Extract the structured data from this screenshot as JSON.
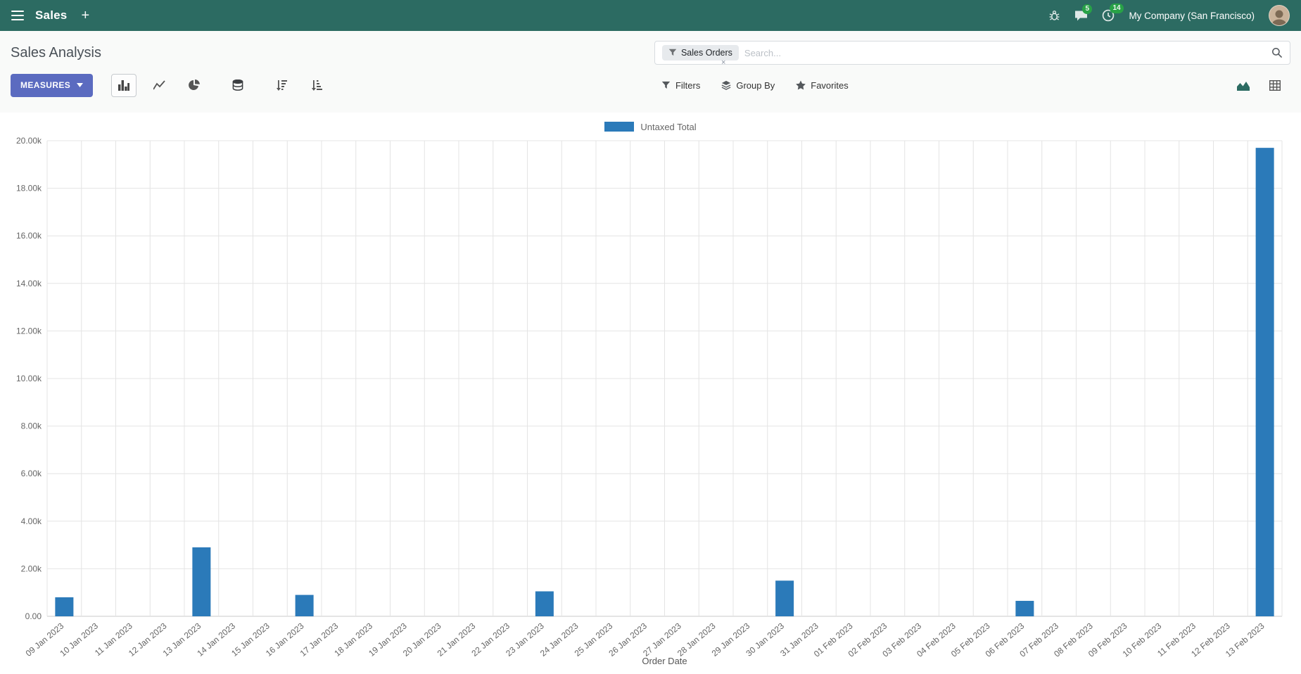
{
  "navbar": {
    "app_name": "Sales",
    "new_label": "+",
    "message_count": "5",
    "activity_count": "14",
    "company": "My Company (San Francisco)"
  },
  "control_panel": {
    "title": "Sales Analysis",
    "measures_button": "MEASURES",
    "filters": "Filters",
    "group_by": "Group By",
    "favorites": "Favorites",
    "search": {
      "facet_label": "Sales Orders",
      "facet_remove": "×",
      "placeholder": "Search..."
    }
  },
  "chart_data": {
    "type": "bar",
    "title": "",
    "xlabel": "Order Date",
    "ylabel": "",
    "ylim": [
      0,
      20000
    ],
    "ytick_step": 2000,
    "grid": true,
    "legend_position": "top",
    "categories": [
      "09 Jan 2023",
      "10 Jan 2023",
      "11 Jan 2023",
      "12 Jan 2023",
      "13 Jan 2023",
      "14 Jan 2023",
      "15 Jan 2023",
      "16 Jan 2023",
      "17 Jan 2023",
      "18 Jan 2023",
      "19 Jan 2023",
      "20 Jan 2023",
      "21 Jan 2023",
      "22 Jan 2023",
      "23 Jan 2023",
      "24 Jan 2023",
      "25 Jan 2023",
      "26 Jan 2023",
      "27 Jan 2023",
      "28 Jan 2023",
      "29 Jan 2023",
      "30 Jan 2023",
      "31 Jan 2023",
      "01 Feb 2023",
      "02 Feb 2023",
      "03 Feb 2023",
      "04 Feb 2023",
      "05 Feb 2023",
      "06 Feb 2023",
      "07 Feb 2023",
      "08 Feb 2023",
      "09 Feb 2023",
      "10 Feb 2023",
      "11 Feb 2023",
      "12 Feb 2023",
      "13 Feb 2023"
    ],
    "series": [
      {
        "name": "Untaxed Total",
        "color": "#2b7ab9",
        "values": [
          800,
          0,
          0,
          0,
          2900,
          0,
          0,
          900,
          0,
          0,
          0,
          0,
          0,
          0,
          1050,
          0,
          0,
          0,
          0,
          0,
          0,
          1500,
          0,
          0,
          0,
          0,
          0,
          0,
          650,
          0,
          0,
          0,
          0,
          0,
          0,
          19700
        ]
      }
    ]
  }
}
